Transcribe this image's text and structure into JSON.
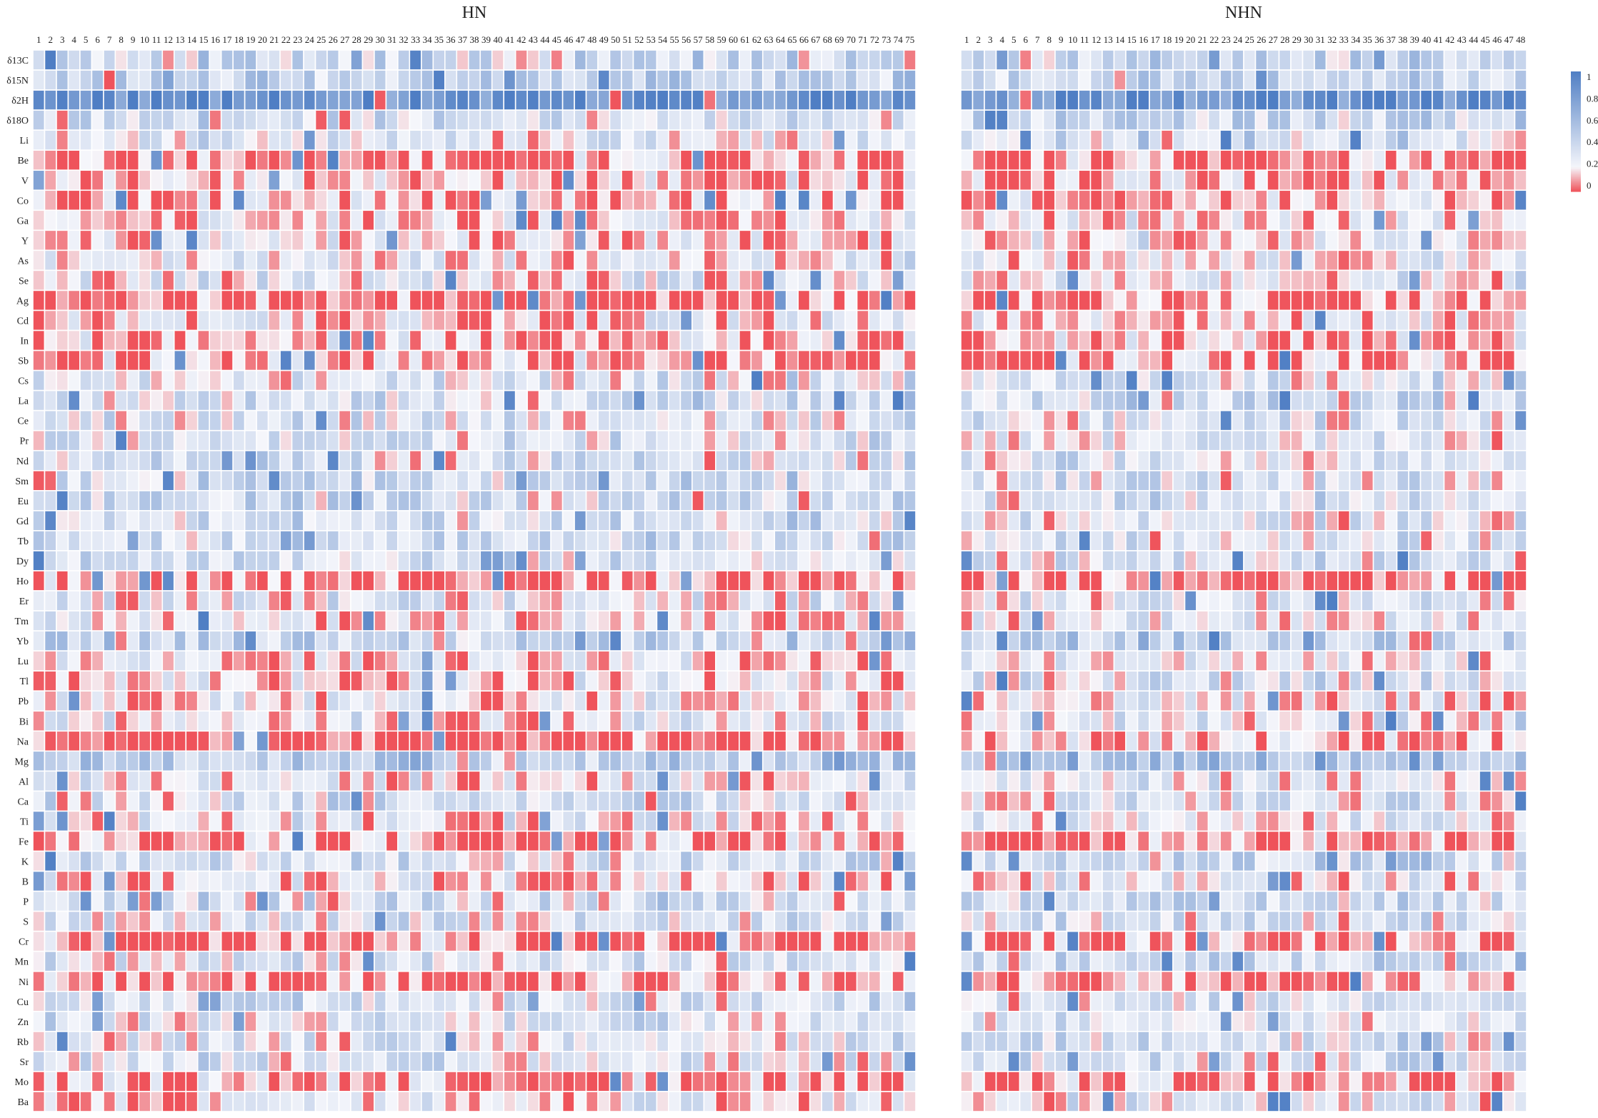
{
  "chart_data": [
    {
      "type": "heatmap",
      "title": "HN",
      "columns": [
        "1",
        "2",
        "3",
        "4",
        "5",
        "6",
        "7",
        "8",
        "9",
        "10",
        "11",
        "12",
        "13",
        "14",
        "15",
        "16",
        "17",
        "18",
        "19",
        "20",
        "21",
        "22",
        "23",
        "24",
        "25",
        "26",
        "27",
        "28",
        "29",
        "30",
        "31",
        "32",
        "33",
        "34",
        "35",
        "36",
        "37",
        "38",
        "39",
        "40",
        "41",
        "42",
        "43",
        "44",
        "45",
        "46",
        "47",
        "48",
        "49",
        "50",
        "51",
        "52",
        "53",
        "54",
        "55",
        "56",
        "57",
        "58",
        "59",
        "60",
        "61",
        "62",
        "63",
        "64",
        "65",
        "66",
        "67",
        "68",
        "69",
        "70",
        "71",
        "72",
        "73",
        "74",
        "75"
      ],
      "rows": [
        "δ13C",
        "δ15N",
        "δ2H",
        "δ18O",
        "Li",
        "Be",
        "V",
        "Co",
        "Ga",
        "Y",
        "As",
        "Se",
        "Ag",
        "Cd",
        "In",
        "Sb",
        "Cs",
        "La",
        "Ce",
        "Pr",
        "Nd",
        "Sm",
        "Eu",
        "Gd",
        "Tb",
        "Dy",
        "Ho",
        "Er",
        "Tm",
        "Yb",
        "Lu",
        "Tl",
        "Pb",
        "Bi",
        "Na",
        "Mg",
        "Al",
        "Ca",
        "Ti",
        "Fe",
        "K",
        "B",
        "P",
        "S",
        "Cr",
        "Mn",
        "Ni",
        "Cu",
        "Zn",
        "Rb",
        "Sr",
        "Mo",
        "Ba"
      ],
      "row_profiles": [
        0.4,
        0.45,
        0.9,
        0.35,
        0.3,
        0.05,
        0.12,
        0.12,
        0.18,
        0.18,
        0.22,
        0.25,
        0.02,
        0.2,
        0.15,
        0.12,
        0.3,
        0.35,
        0.3,
        0.35,
        0.35,
        0.38,
        0.4,
        0.38,
        0.38,
        0.35,
        0.05,
        0.28,
        0.22,
        0.45,
        0.2,
        0.18,
        0.2,
        0.25,
        0.02,
        0.5,
        0.22,
        0.35,
        0.25,
        0.08,
        0.35,
        0.15,
        0.38,
        0.3,
        0.06,
        0.32,
        0.04,
        0.35,
        0.3,
        0.32,
        0.3,
        0.1,
        0.2
      ],
      "seed": 17,
      "zlim": [
        0,
        1
      ]
    },
    {
      "type": "heatmap",
      "title": "NHN",
      "columns": [
        "1",
        "2",
        "3",
        "4",
        "5",
        "6",
        "7",
        "8",
        "9",
        "10",
        "11",
        "12",
        "13",
        "14",
        "15",
        "16",
        "17",
        "18",
        "19",
        "20",
        "21",
        "22",
        "23",
        "24",
        "25",
        "26",
        "27",
        "28",
        "29",
        "30",
        "31",
        "32",
        "33",
        "34",
        "35",
        "36",
        "37",
        "38",
        "39",
        "40",
        "41",
        "42",
        "43",
        "44",
        "45",
        "46",
        "47",
        "48"
      ],
      "rows": [
        "δ13C",
        "δ15N",
        "δ2H",
        "δ18O",
        "Li",
        "Be",
        "V",
        "Co",
        "Ga",
        "Y",
        "As",
        "Se",
        "Ag",
        "Cd",
        "In",
        "Sb",
        "Cs",
        "La",
        "Ce",
        "Pr",
        "Nd",
        "Sm",
        "Eu",
        "Gd",
        "Tb",
        "Dy",
        "Ho",
        "Er",
        "Tm",
        "Yb",
        "Lu",
        "Tl",
        "Pb",
        "Bi",
        "Na",
        "Mg",
        "Al",
        "Ca",
        "Ti",
        "Fe",
        "K",
        "B",
        "P",
        "S",
        "Cr",
        "Mn",
        "Ni",
        "Cu",
        "Zn",
        "Rb",
        "Sr",
        "Mo",
        "Ba"
      ],
      "row_profiles": [
        0.45,
        0.45,
        0.9,
        0.38,
        0.38,
        0.05,
        0.12,
        0.12,
        0.18,
        0.2,
        0.2,
        0.25,
        0.04,
        0.2,
        0.12,
        0.12,
        0.3,
        0.38,
        0.32,
        0.3,
        0.3,
        0.32,
        0.35,
        0.28,
        0.3,
        0.32,
        0.05,
        0.28,
        0.25,
        0.45,
        0.25,
        0.3,
        0.2,
        0.28,
        0.15,
        0.55,
        0.25,
        0.3,
        0.25,
        0.06,
        0.38,
        0.25,
        0.38,
        0.3,
        0.06,
        0.45,
        0.05,
        0.3,
        0.3,
        0.38,
        0.3,
        0.06,
        0.25
      ],
      "seed": 91,
      "zlim": [
        0,
        1
      ]
    }
  ],
  "legend": {
    "ticks": [
      "1",
      "0.8",
      "0.6",
      "0.4",
      "0.2",
      "0"
    ]
  },
  "colors": {
    "high": "#4f7ec4",
    "mid": "#f5f6fb",
    "low": "#ef535b",
    "cell_border": "#ffffff"
  }
}
